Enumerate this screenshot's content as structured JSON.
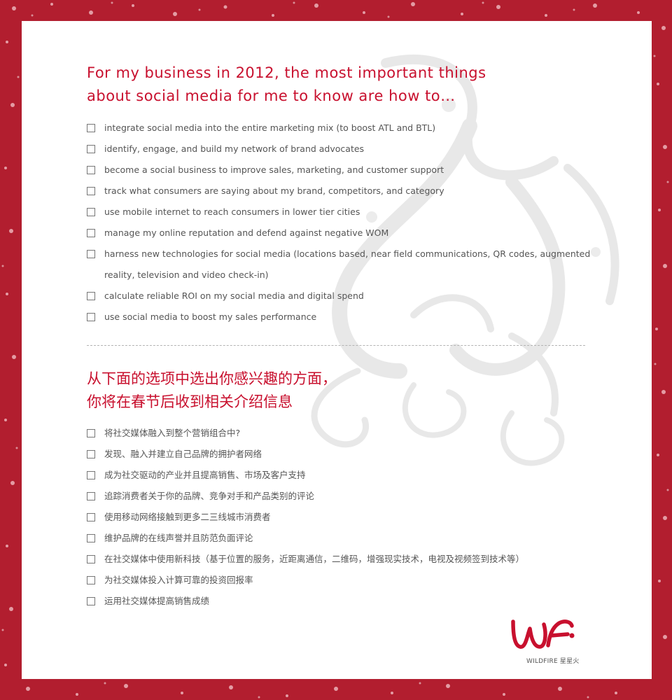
{
  "colors": {
    "frame": "#b21e2f",
    "card": "#ffffff",
    "heading": "#c8102e",
    "body_text": "#555555",
    "watermark": "#e6e6e6"
  },
  "english": {
    "heading_lines": [
      "For my business in 2012, the most important things",
      "about social media for me to know are how to…"
    ],
    "options": [
      "integrate social media into the entire marketing mix (to boost ATL and BTL)",
      "identify, engage, and build my network of brand advocates",
      "become a social business to improve sales, marketing, and customer support",
      "track what consumers are saying about my brand, competitors, and category",
      "use mobile internet to reach consumers in lower tier cities",
      "manage my online reputation and defend against negative WOM",
      "harness new technologies for social media (locations based, near field communications, QR codes, augmented reality, television and video check-in)",
      "calculate reliable ROI on my social media and digital spend",
      "use social media to boost my sales performance"
    ]
  },
  "chinese": {
    "heading_lines": [
      "从下面的选项中选出你感兴趣的方面，",
      "你将在春节后收到相关介绍信息"
    ],
    "options": [
      "将社交媒体融入到整个营销组合中?",
      "发现、融入并建立自己品牌的拥护者网络",
      "成为社交驱动的产业并且提高销售、市场及客户支持",
      "追踪消费者关于你的品牌、竞争对手和产品类别的评论",
      "使用移动网络接触到更多二三线城市消费者",
      "维护品牌的在线声誉并且防范负面评论",
      "在社交媒体中使用新科技（基于位置的服务，近距离通信，二维码，增强现实技术，电视及视频签到技术等）",
      "为社交媒体投入计算可靠的投资回报率",
      "运用社交媒体提高销售成绩"
    ]
  },
  "logo": {
    "caption": "WILDFIRE 星星火",
    "icon": "wildfire-logo-icon"
  }
}
